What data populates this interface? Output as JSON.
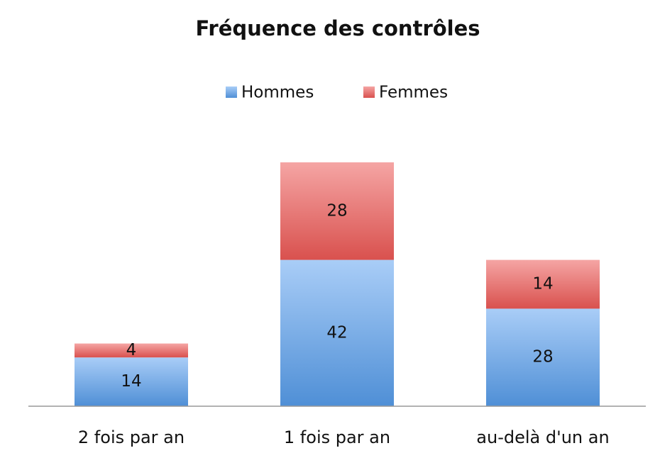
{
  "chart_data": {
    "type": "stacked_bar",
    "title": "Fréquence des contrôles",
    "categories": [
      "2 fois par an",
      "1 fois par an",
      "au-delà d'un an"
    ],
    "series": [
      {
        "name": "Hommes",
        "color": "#5b9be0",
        "values": [
          14,
          42,
          28
        ]
      },
      {
        "name": "Femmes",
        "color": "#e06260",
        "values": [
          4,
          28,
          14
        ]
      }
    ],
    "legend": "top"
  }
}
